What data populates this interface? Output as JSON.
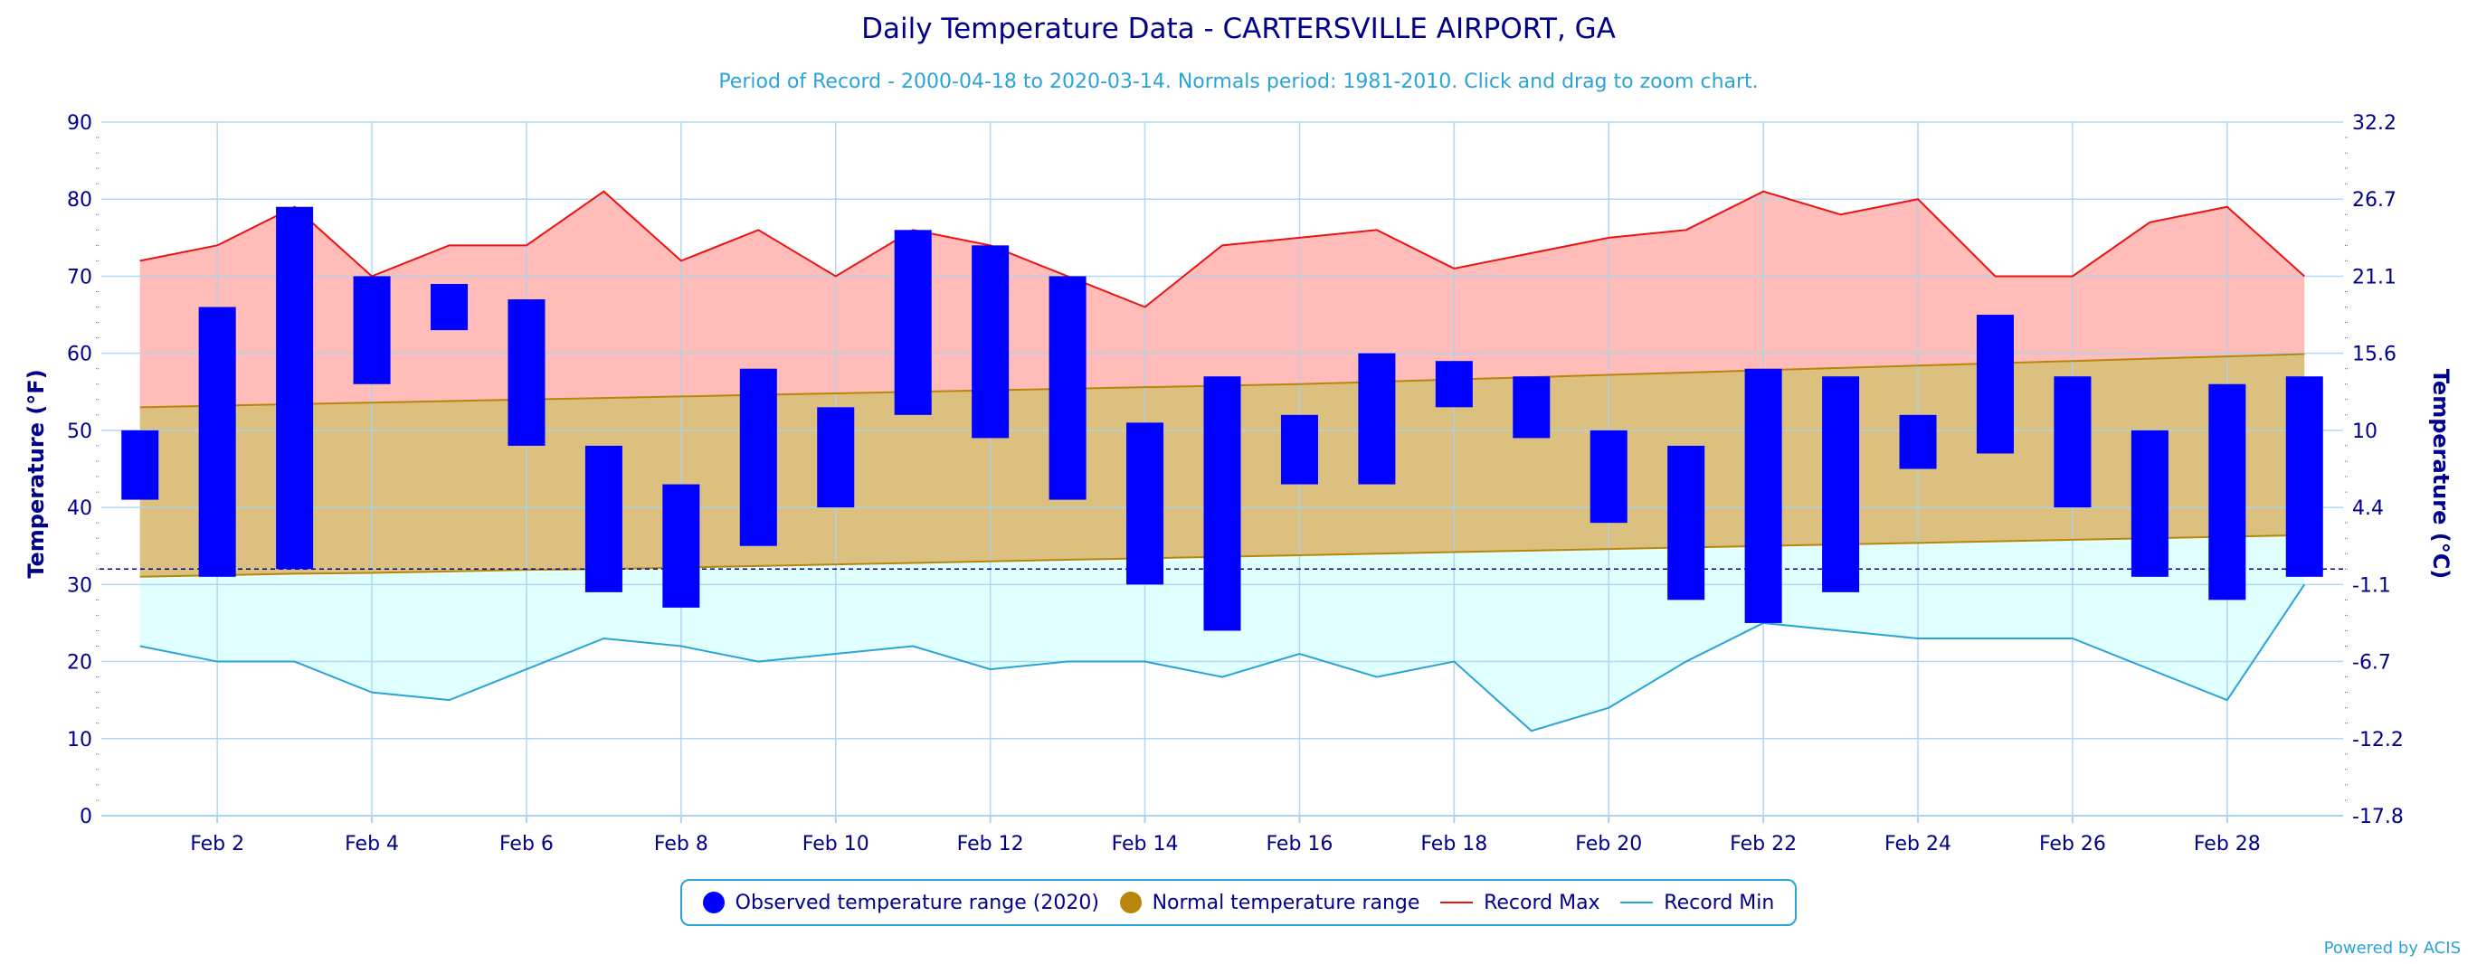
{
  "title": "Daily Temperature Data - CARTERSVILLE AIRPORT, GA",
  "subtitle": "Period of Record - 2000-04-18 to 2020-03-14. Normals period: 1981-2010. Click and drag to zoom chart.",
  "powered_by": "Powered by ACIS",
  "legend": {
    "observed": "Observed temperature range (2020)",
    "normal": "Normal temperature range",
    "record_max": "Record Max",
    "record_min": "Record Min"
  },
  "colors": {
    "title": "#00008b",
    "subtitle": "#2aa4d8",
    "observed": "#0000ff",
    "normal_fill": "#dbc07f",
    "normal_line": "#b8860b",
    "record_max_fill": "#ffbcb8",
    "record_max_line": "#ee1111",
    "record_min_fill": "#e0ffff",
    "record_min_line": "#2aa4d8",
    "grid": "#a8d4ee"
  },
  "chart_data": {
    "type": "bar",
    "xlabel": "",
    "ylabel": "Temperature (°F)",
    "ylabel_right": "Temperature (°C)",
    "ylim": [
      0,
      90
    ],
    "yticks": [
      0,
      10,
      20,
      30,
      40,
      50,
      60,
      70,
      80,
      90
    ],
    "yticks_right": [
      "-17.8",
      "-12.2",
      "-6.7",
      "-1.1",
      "4.4",
      "10",
      "15.6",
      "21.1",
      "26.7",
      "32.2"
    ],
    "xticks": [
      "Feb 2",
      "Feb 4",
      "Feb 6",
      "Feb 8",
      "Feb 10",
      "Feb 12",
      "Feb 14",
      "Feb 16",
      "Feb 18",
      "Feb 20",
      "Feb 22",
      "Feb 24",
      "Feb 26",
      "Feb 28"
    ],
    "days": [
      1,
      2,
      3,
      4,
      5,
      6,
      7,
      8,
      9,
      10,
      11,
      12,
      13,
      14,
      15,
      16,
      17,
      18,
      19,
      20,
      21,
      22,
      23,
      24,
      25,
      26,
      27,
      28,
      29
    ],
    "observed_min": [
      41,
      31,
      32,
      56,
      63,
      48,
      29,
      27,
      35,
      40,
      52,
      49,
      41,
      30,
      24,
      43,
      43,
      53,
      49,
      38,
      28,
      25,
      29,
      45,
      47,
      40,
      31,
      28,
      31
    ],
    "observed_max": [
      50,
      66,
      79,
      70,
      69,
      67,
      48,
      43,
      58,
      53,
      76,
      74,
      70,
      51,
      57,
      52,
      60,
      59,
      57,
      50,
      48,
      58,
      57,
      52,
      65,
      57,
      50,
      56,
      57
    ],
    "normal_min": [
      31,
      31.2,
      31.4,
      31.5,
      31.7,
      31.9,
      32,
      32.2,
      32.4,
      32.6,
      32.8,
      33,
      33.2,
      33.4,
      33.6,
      33.8,
      34,
      34.2,
      34.4,
      34.6,
      34.8,
      35,
      35.2,
      35.4,
      35.6,
      35.8,
      36,
      36.2,
      36.4
    ],
    "normal_max": [
      53,
      53.2,
      53.4,
      53.6,
      53.8,
      54,
      54.2,
      54.4,
      54.6,
      54.8,
      55,
      55.2,
      55.4,
      55.6,
      55.8,
      56,
      56.3,
      56.6,
      56.9,
      57.2,
      57.5,
      57.8,
      58.1,
      58.4,
      58.7,
      59,
      59.3,
      59.6,
      59.9
    ],
    "record_max": [
      72,
      74,
      79,
      70,
      74,
      74,
      81,
      72,
      76,
      70,
      76,
      74,
      70,
      66,
      74,
      75,
      76,
      71,
      73,
      75,
      76,
      81,
      78,
      80,
      70,
      70,
      77,
      79,
      70
    ],
    "record_min": [
      22,
      20,
      20,
      16,
      15,
      19,
      23,
      22,
      20,
      21,
      22,
      19,
      20,
      20,
      18,
      21,
      18,
      20,
      11,
      14,
      20,
      25,
      24,
      23,
      23,
      23,
      19,
      15,
      30
    ],
    "freezing_line": 32
  }
}
